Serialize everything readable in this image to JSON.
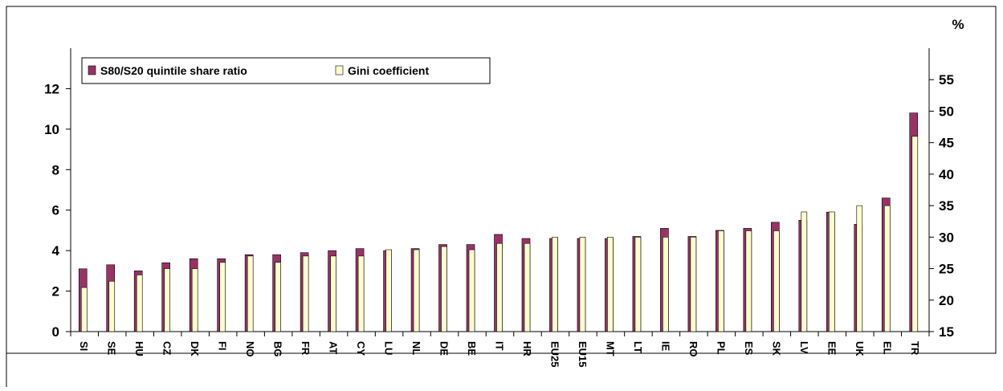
{
  "chart_data": {
    "type": "bar",
    "y2_label": "%",
    "categories": [
      "SI",
      "SE",
      "HU",
      "CZ",
      "DK",
      "FI",
      "NO",
      "BG",
      "FR",
      "AT",
      "CY",
      "LU",
      "NL",
      "DE",
      "BE",
      "IT",
      "HR",
      "EU25",
      "EU15",
      "MT",
      "LT",
      "IE",
      "RO",
      "PL",
      "ES",
      "SK",
      "LV",
      "EE",
      "UK",
      "EL",
      "TR"
    ],
    "series": [
      {
        "name": "S80/S20 quintile share ratio",
        "color": "#993366",
        "values": [
          3.1,
          3.3,
          3.0,
          3.4,
          3.6,
          3.6,
          3.8,
          3.8,
          3.9,
          4.0,
          4.1,
          4.0,
          4.1,
          4.3,
          4.3,
          4.8,
          4.6,
          4.6,
          4.6,
          4.6,
          4.7,
          5.1,
          4.7,
          5.0,
          5.1,
          5.4,
          5.5,
          5.9,
          5.3,
          6.6,
          10.8
        ]
      },
      {
        "name": "Gini coefficient",
        "color": "#FFFFCC",
        "axis": "y2",
        "values": [
          22,
          23,
          24,
          25,
          25,
          26,
          27,
          26,
          27,
          27,
          27,
          28,
          28,
          28.5,
          28,
          29,
          29,
          30,
          30,
          30,
          30,
          30,
          30,
          31,
          31,
          31,
          34,
          34,
          35,
          35,
          46
        ]
      }
    ],
    "ylim": [
      0,
      14
    ],
    "yticks": [
      0,
      2,
      4,
      6,
      8,
      10,
      12
    ],
    "y2lim": [
      15,
      60
    ],
    "y2ticks": [
      15,
      20,
      25,
      30,
      35,
      40,
      45,
      50,
      55
    ]
  }
}
